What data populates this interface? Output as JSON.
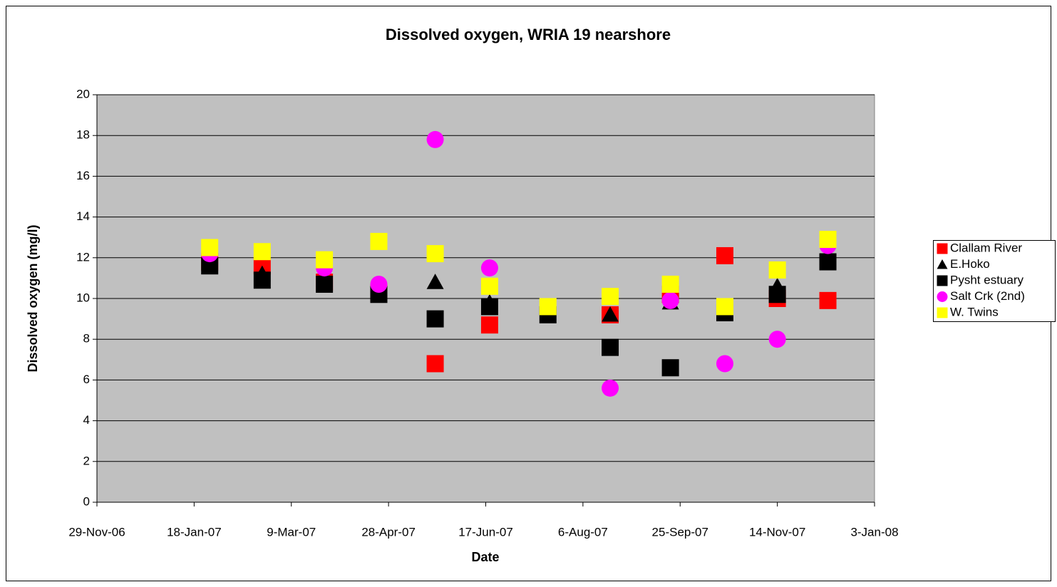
{
  "chart_data": {
    "type": "scatter",
    "title": "Dissolved oxygen, WRIA 19 nearshore",
    "x_label": "Date",
    "y_label": "Dissolved oxygen (mg/l)",
    "x": [
      "2007-01-26",
      "2007-02-22",
      "2007-03-26",
      "2007-04-23",
      "2007-05-22",
      "2007-06-19",
      "2007-07-19",
      "2007-08-20",
      "2007-09-20",
      "2007-10-18",
      "2007-11-14",
      "2007-12-10"
    ],
    "series": [
      {
        "name": "Clallam River",
        "color": "#ff0000",
        "marker": "square",
        "values": [
          11.8,
          11.6,
          10.8,
          10.3,
          6.8,
          8.7,
          null,
          9.2,
          10.2,
          12.1,
          10.0,
          9.9
        ]
      },
      {
        "name": "E.Hoko",
        "color": "#000000",
        "marker": "triangle",
        "values": [
          11.7,
          11.2,
          10.9,
          10.3,
          10.8,
          9.8,
          null,
          9.2,
          9.8,
          9.3,
          10.6,
          12.0
        ]
      },
      {
        "name": "Pysht estuary",
        "color": "#000000",
        "marker": "square",
        "values": [
          11.6,
          10.9,
          10.7,
          10.2,
          9.0,
          9.6,
          9.2,
          7.6,
          6.6,
          9.3,
          10.2,
          11.8
        ]
      },
      {
        "name": "Salt Crk (2nd)",
        "color": "#ff00ff",
        "marker": "circle",
        "values": [
          12.2,
          null,
          11.5,
          10.7,
          17.8,
          11.5,
          null,
          5.6,
          9.9,
          6.8,
          8.0,
          12.6
        ]
      },
      {
        "name": "W. Twins",
        "color": "#ffff00",
        "marker": "square",
        "values": [
          12.5,
          12.3,
          11.9,
          12.8,
          12.2,
          10.6,
          9.6,
          10.1,
          10.7,
          9.6,
          11.4,
          12.9
        ]
      }
    ],
    "xlim": [
      "2006-11-29",
      "2008-01-03"
    ],
    "xticks": [
      {
        "value": "2006-11-29",
        "label": "29-Nov-06"
      },
      {
        "value": "2007-01-18",
        "label": "18-Jan-07"
      },
      {
        "value": "2007-03-09",
        "label": "9-Mar-07"
      },
      {
        "value": "2007-04-28",
        "label": "28-Apr-07"
      },
      {
        "value": "2007-06-17",
        "label": "17-Jun-07"
      },
      {
        "value": "2007-08-06",
        "label": "6-Aug-07"
      },
      {
        "value": "2007-09-25",
        "label": "25-Sep-07"
      },
      {
        "value": "2007-11-14",
        "label": "14-Nov-07"
      },
      {
        "value": "2008-01-03",
        "label": "3-Jan-08"
      }
    ],
    "ylim": [
      0,
      20
    ],
    "yticks": [
      0,
      2,
      4,
      6,
      8,
      10,
      12,
      14,
      16,
      18,
      20
    ],
    "grid": true,
    "plot_background": "#c0c0c0",
    "legend": "right"
  }
}
